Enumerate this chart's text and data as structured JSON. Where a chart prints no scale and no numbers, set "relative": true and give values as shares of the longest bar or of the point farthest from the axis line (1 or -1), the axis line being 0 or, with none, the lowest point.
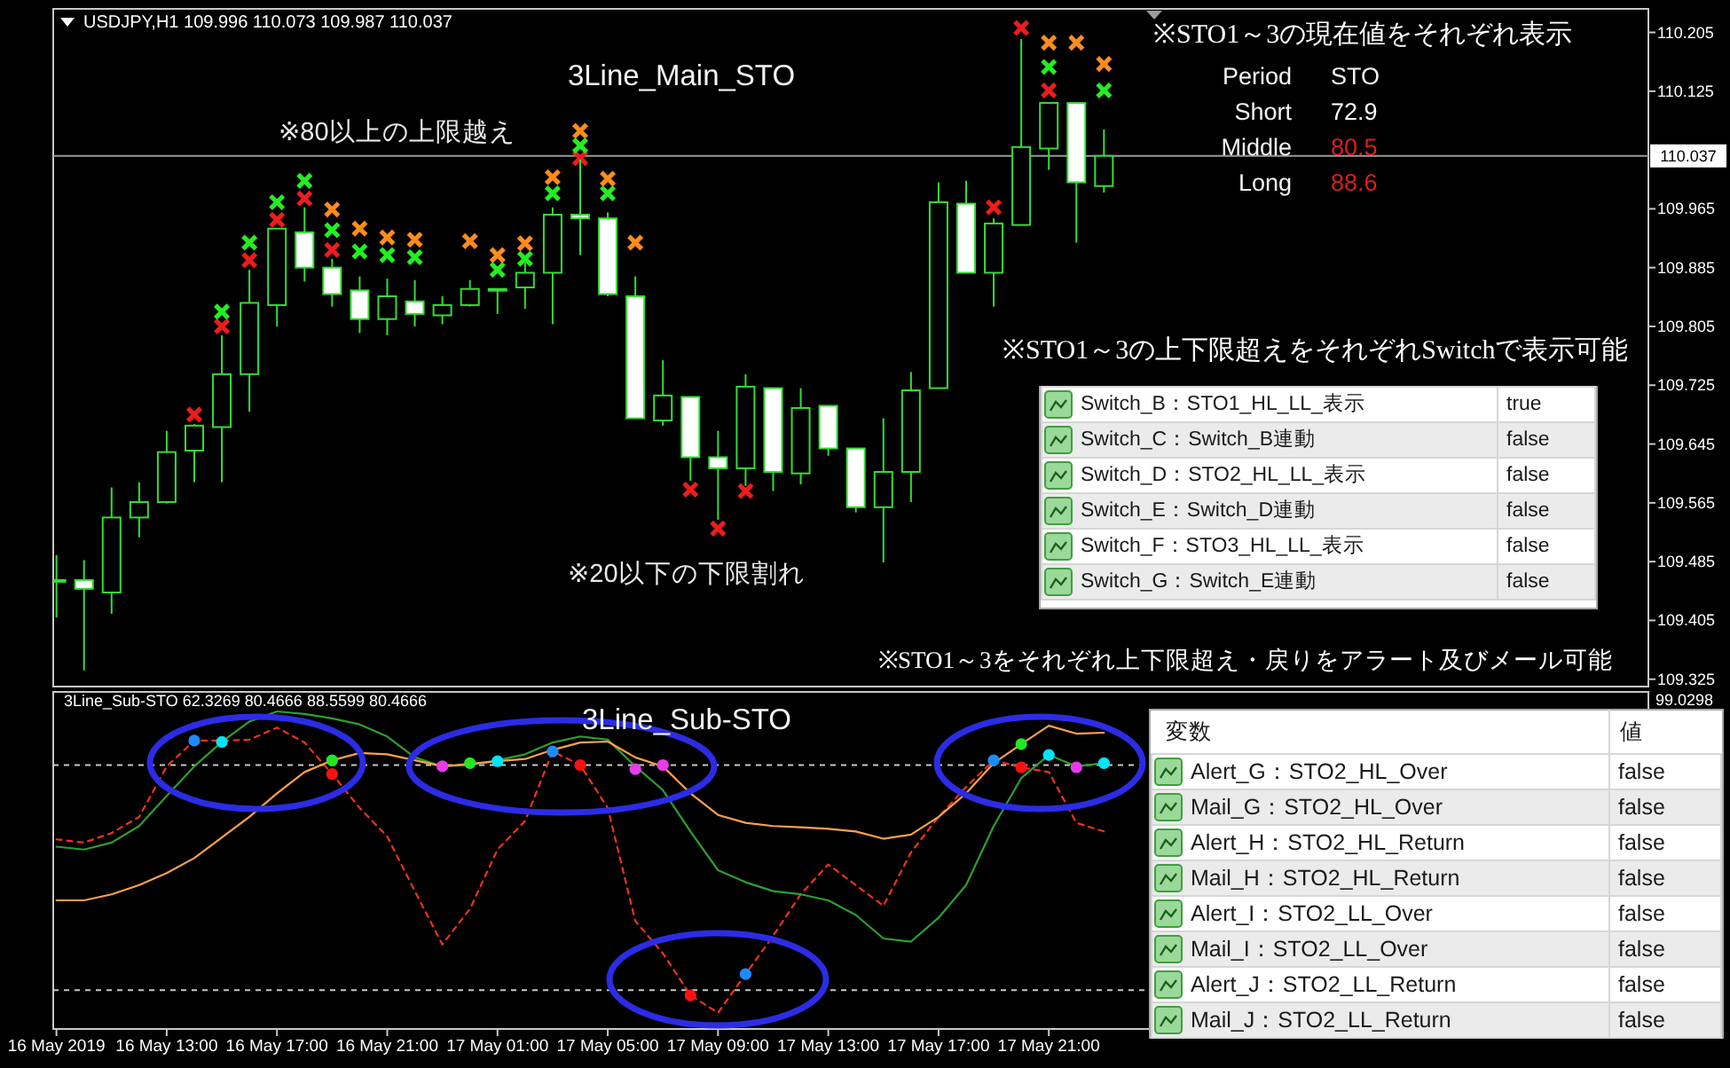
{
  "chart_data": [
    {
      "type": "candlestick",
      "title": "3Line_Main_STO",
      "annotations": [
        "USDJPY,H1 109.996 110.073 109.987 110.037",
        "※80以上の上限越え",
        "※20以下の下限割れ",
        "※STO1～3の上下限超えをそれぞれSwitchで表示可能",
        "※STO1～3をそれぞれ上下限超え・戻りをアラート及びメール可能"
      ],
      "color": "#33dd33",
      "x": [
        "2019-05-16T09:00",
        "2019-05-16T10:00",
        "2019-05-16T11:00",
        "2019-05-16T12:00",
        "2019-05-16T13:00",
        "2019-05-16T14:00",
        "2019-05-16T15:00",
        "2019-05-16T16:00",
        "2019-05-16T17:00",
        "2019-05-16T18:00",
        "2019-05-16T19:00",
        "2019-05-16T20:00",
        "2019-05-16T21:00",
        "2019-05-16T22:00",
        "2019-05-16T23:00",
        "2019-05-17T00:00",
        "2019-05-17T01:00",
        "2019-05-17T02:00",
        "2019-05-17T03:00",
        "2019-05-17T04:00",
        "2019-05-17T05:00",
        "2019-05-17T06:00",
        "2019-05-17T07:00",
        "2019-05-17T08:00",
        "2019-05-17T09:00",
        "2019-05-17T10:00",
        "2019-05-17T11:00",
        "2019-05-17T12:00",
        "2019-05-17T13:00",
        "2019-05-17T14:00",
        "2019-05-17T15:00",
        "2019-05-17T16:00",
        "2019-05-17T17:00",
        "2019-05-17T18:00",
        "2019-05-17T19:00",
        "2019-05-17T20:00",
        "2019-05-17T21:00",
        "2019-05-17T22:00",
        "2019-05-17T23:00"
      ],
      "ohlc": [
        [
          109.46,
          109.494,
          109.409,
          109.46
        ],
        [
          109.46,
          109.487,
          109.337,
          109.448
        ],
        [
          109.443,
          109.586,
          109.414,
          109.545
        ],
        [
          109.545,
          109.593,
          109.518,
          109.566
        ],
        [
          109.566,
          109.663,
          109.564,
          109.634
        ],
        [
          109.636,
          109.672,
          109.593,
          109.67
        ],
        [
          109.668,
          109.793,
          109.593,
          109.74
        ],
        [
          109.74,
          109.882,
          109.689,
          109.837
        ],
        [
          109.834,
          109.938,
          109.805,
          109.938
        ],
        [
          109.933,
          109.967,
          109.866,
          109.885
        ],
        [
          109.885,
          109.897,
          109.832,
          109.849
        ],
        [
          109.854,
          109.873,
          109.796,
          109.815
        ],
        [
          109.815,
          109.87,
          109.793,
          109.846
        ],
        [
          109.839,
          109.868,
          109.805,
          109.822
        ],
        [
          109.82,
          109.846,
          109.808,
          109.834
        ],
        [
          109.834,
          109.868,
          109.832,
          109.856
        ],
        [
          109.856,
          109.856,
          109.822,
          109.856
        ],
        [
          109.858,
          109.892,
          109.829,
          109.878
        ],
        [
          109.878,
          109.967,
          109.808,
          109.957
        ],
        [
          109.957,
          110.032,
          109.902,
          109.952
        ],
        [
          109.952,
          109.96,
          109.846,
          109.849
        ],
        [
          109.846,
          109.873,
          109.68,
          109.68
        ],
        [
          109.677,
          109.759,
          109.67,
          109.711
        ],
        [
          109.709,
          109.709,
          109.595,
          109.627
        ],
        [
          109.627,
          109.663,
          109.542,
          109.612
        ],
        [
          109.612,
          109.74,
          109.588,
          109.723
        ],
        [
          109.721,
          109.721,
          109.581,
          109.607
        ],
        [
          109.605,
          109.721,
          109.59,
          109.694
        ],
        [
          109.697,
          109.697,
          109.629,
          109.639
        ],
        [
          109.639,
          109.639,
          109.552,
          109.559
        ],
        [
          109.559,
          109.68,
          109.484,
          109.607
        ],
        [
          109.607,
          109.743,
          109.566,
          109.718
        ],
        [
          109.721,
          110.001,
          109.721,
          109.974
        ],
        [
          109.972,
          110.003,
          109.878,
          109.878
        ],
        [
          109.878,
          109.952,
          109.832,
          109.945
        ],
        [
          109.943,
          110.196,
          109.943,
          110.049
        ],
        [
          110.047,
          110.109,
          110.018,
          110.109
        ],
        [
          110.109,
          110.109,
          109.919,
          110.001
        ],
        [
          109.996,
          110.073,
          109.987,
          110.037
        ]
      ],
      "series": [
        {
          "type": "scatter",
          "marker": "cross",
          "color": "#ee1c1c",
          "x": [
            "2019-05-16T14:00",
            "2019-05-16T15:00",
            "2019-05-16T16:00",
            "2019-05-16T17:00",
            "2019-05-16T18:00",
            "2019-05-16T19:00",
            "2019-05-17T04:00",
            "2019-05-17T08:00",
            "2019-05-17T09:00",
            "2019-05-17T10:00",
            "2019-05-17T19:00",
            "2019-05-17T20:00",
            "2019-05-17T21:00"
          ],
          "values": [
            109.685,
            109.805,
            109.895,
            109.95,
            109.979,
            109.909,
            110.034,
            109.583,
            109.53,
            109.581,
            109.967,
            110.211,
            110.126
          ]
        },
        {
          "type": "scatter",
          "marker": "cross",
          "color": "#22ee22",
          "x": [
            "2019-05-16T15:00",
            "2019-05-16T16:00",
            "2019-05-16T17:00",
            "2019-05-16T18:00",
            "2019-05-16T19:00",
            "2019-05-16T20:00",
            "2019-05-16T21:00",
            "2019-05-16T22:00",
            "2019-05-17T01:00",
            "2019-05-17T02:00",
            "2019-05-17T03:00",
            "2019-05-17T04:00",
            "2019-05-17T05:00",
            "2019-05-17T21:00",
            "2019-05-17T23:00"
          ],
          "values": [
            109.825,
            109.919,
            109.974,
            110.003,
            109.936,
            109.907,
            109.902,
            109.899,
            109.882,
            109.897,
            109.986,
            110.051,
            109.986,
            110.158,
            110.126
          ]
        },
        {
          "type": "scatter",
          "marker": "cross",
          "color": "#ff8c1a",
          "x": [
            "2019-05-16T19:00",
            "2019-05-16T20:00",
            "2019-05-16T21:00",
            "2019-05-16T22:00",
            "2019-05-17T00:00",
            "2019-05-17T01:00",
            "2019-05-17T02:00",
            "2019-05-17T03:00",
            "2019-05-17T04:00",
            "2019-05-17T05:00",
            "2019-05-17T06:00",
            "2019-05-17T21:00",
            "2019-05-17T22:00",
            "2019-05-17T23:00"
          ],
          "values": [
            109.964,
            109.938,
            109.926,
            109.923,
            109.921,
            109.902,
            109.918,
            110.008,
            110.071,
            110.006,
            109.919,
            110.191,
            110.191,
            110.162
          ]
        }
      ],
      "xlim": [
        "2019-05-16T08:53",
        "2019-05-18T18:45"
      ],
      "ylim": [
        109.315,
        110.237
      ],
      "yticks": [
        110.205,
        110.125,
        109.965,
        109.885,
        109.805,
        109.725,
        109.645,
        109.565,
        109.485,
        109.405,
        109.325
      ],
      "tick_labels": "y",
      "ref_lines": [
        {
          "axis": "y",
          "value": 110.037,
          "label": "110.037",
          "color": "#9a9a9a"
        }
      ]
    },
    {
      "type": "other",
      "title": "※STO1～3の現在値をそれぞれ表示",
      "xlabel": "Period",
      "ylabel": "STO",
      "categories": [
        "Short",
        "Middle",
        "Long"
      ],
      "values": [
        72.9,
        80.5,
        88.6
      ],
      "colors": [
        "#ffffff",
        "#e01b1b",
        "#e01b1b"
      ],
      "data_labels": true
    },
    {
      "type": "other",
      "categories": [
        "Switch_B：STO1_HL_LL_表示",
        "Switch_C：Switch_B連動",
        "Switch_D：STO2_HL_LL_表示",
        "Switch_E：Switch_D連動",
        "Switch_F：STO3_HL_LL_表示",
        "Switch_G：Switch_E連動"
      ],
      "value_labels": [
        "true",
        "false",
        "false",
        "false",
        "false",
        "false"
      ]
    },
    {
      "type": "line",
      "title": "3Line_Sub-STO",
      "annotations": [
        "3Line_Sub-STO 62.3269 80.4666 88.5599 80.4666",
        "99.0298"
      ],
      "relative": true,
      "x": [
        "2019-05-16T09:00",
        "2019-05-16T10:00",
        "2019-05-16T11:00",
        "2019-05-16T12:00",
        "2019-05-16T13:00",
        "2019-05-16T14:00",
        "2019-05-16T15:00",
        "2019-05-16T16:00",
        "2019-05-16T17:00",
        "2019-05-16T18:00",
        "2019-05-16T19:00",
        "2019-05-16T20:00",
        "2019-05-16T21:00",
        "2019-05-16T22:00",
        "2019-05-16T23:00",
        "2019-05-17T00:00",
        "2019-05-17T01:00",
        "2019-05-17T02:00",
        "2019-05-17T03:00",
        "2019-05-17T04:00",
        "2019-05-17T05:00",
        "2019-05-17T06:00",
        "2019-05-17T07:00",
        "2019-05-17T08:00",
        "2019-05-17T09:00",
        "2019-05-17T10:00",
        "2019-05-17T11:00",
        "2019-05-17T12:00",
        "2019-05-17T13:00",
        "2019-05-17T14:00",
        "2019-05-17T15:00",
        "2019-05-17T16:00",
        "2019-05-17T17:00",
        "2019-05-17T18:00",
        "2019-05-17T19:00",
        "2019-05-17T20:00",
        "2019-05-17T21:00",
        "2019-05-17T22:00",
        "2019-05-17T23:00"
      ],
      "series": [
        {
          "color": "#f0321e",
          "line_style": "dashed",
          "values": [
            0.597,
            0.587,
            0.617,
            0.668,
            0.827,
            0.908,
            0.908,
            0.911,
            0.949,
            0.902,
            0.803,
            0.696,
            0.606,
            0.434,
            0.266,
            0.378,
            0.565,
            0.655,
            0.874,
            0.831,
            0.696,
            0.34,
            0.238,
            0.106,
            0.051,
            0.173,
            0.293,
            0.424,
            0.518,
            0.453,
            0.388,
            0.556,
            0.668,
            0.762,
            0.846,
            0.824,
            0.809,
            0.649,
            0.622
          ]
        },
        {
          "color": "#2e9e2e",
          "values": [
            0.574,
            0.565,
            0.587,
            0.639,
            0.734,
            0.827,
            0.904,
            0.968,
            1,
            0.992,
            0.978,
            0.959,
            0.921,
            0.855,
            0.827,
            0.831,
            0.846,
            0.865,
            0.902,
            0.921,
            0.911,
            0.827,
            0.752,
            0.622,
            0.5,
            0.462,
            0.434,
            0.424,
            0.405,
            0.359,
            0.285,
            0.275,
            0.35,
            0.453,
            0.639,
            0.79,
            0.863,
            0.827,
            0.837
          ]
        },
        {
          "color": "#ffa04a",
          "values": [
            0.405,
            0.405,
            0.424,
            0.453,
            0.491,
            0.538,
            0.603,
            0.668,
            0.742,
            0.809,
            0.846,
            0.869,
            0.865,
            0.846,
            0.827,
            0.835,
            0.843,
            0.85,
            0.879,
            0.902,
            0.905,
            0.855,
            0.827,
            0.742,
            0.674,
            0.649,
            0.639,
            0.635,
            0.63,
            0.622,
            0.599,
            0.612,
            0.668,
            0.742,
            0.837,
            0.897,
            0.955,
            0.93,
            0.933
          ]
        },
        {
          "type": "scatter",
          "marker": "circle",
          "color": "#1e8cff",
          "x": [
            "2019-05-16T14:00",
            "2019-05-17T03:00",
            "2019-05-17T10:00",
            "2019-05-17T19:00"
          ],
          "values": [
            0.908,
            0.874,
            0.173,
            0.846
          ]
        },
        {
          "type": "scatter",
          "marker": "circle",
          "color": "#00e5ff",
          "x": [
            "2019-05-16T15:00",
            "2019-05-17T01:00",
            "2019-05-17T21:00",
            "2019-05-17T23:00"
          ],
          "values": [
            0.904,
            0.843,
            0.863,
            0.837
          ]
        },
        {
          "type": "scatter",
          "marker": "circle",
          "color": "#22e822",
          "x": [
            "2019-05-16T19:00",
            "2019-05-17T00:00",
            "2019-05-17T20:00"
          ],
          "values": [
            0.846,
            0.837,
            0.897
          ]
        },
        {
          "type": "scatter",
          "marker": "circle",
          "color": "#ff1010",
          "x": [
            "2019-05-16T19:00",
            "2019-05-17T04:00",
            "2019-05-17T08:00",
            "2019-05-17T20:00"
          ],
          "values": [
            0.803,
            0.831,
            0.106,
            0.824
          ]
        },
        {
          "type": "scatter",
          "marker": "circle",
          "color": "#e83ce8",
          "x": [
            "2019-05-16T23:00",
            "2019-05-17T06:00",
            "2019-05-17T07:00",
            "2019-05-17T22:00"
          ],
          "values": [
            0.827,
            0.818,
            0.831,
            0.824
          ]
        }
      ],
      "xlim": [
        "2019-05-16T08:53",
        "2019-05-18T18:45"
      ],
      "xticks": [
        {
          "value": "2019-05-16T09:00",
          "label": "16 May 2019"
        },
        {
          "value": "2019-05-16T13:00",
          "label": "16 May 13:00"
        },
        {
          "value": "2019-05-16T17:00",
          "label": "16 May 17:00"
        },
        {
          "value": "2019-05-16T21:00",
          "label": "16 May 21:00"
        },
        {
          "value": "2019-05-17T01:00",
          "label": "17 May 01:00"
        },
        {
          "value": "2019-05-17T05:00",
          "label": "17 May 05:00"
        },
        {
          "value": "2019-05-17T09:00",
          "label": "17 May 09:00"
        },
        {
          "value": "2019-05-17T13:00",
          "label": "17 May 13:00"
        },
        {
          "value": "2019-05-17T17:00",
          "label": "17 May 17:00"
        },
        {
          "value": "2019-05-17T21:00",
          "label": "17 May 21:00"
        }
      ],
      "ref_lines": [
        {
          "axis": "y",
          "value": 0.831,
          "color": "#c8c8c8",
          "line_style": "dashed"
        },
        {
          "axis": "y",
          "value": 0.122,
          "color": "#c8c8c8",
          "line_style": "dashed"
        }
      ]
    },
    {
      "type": "other",
      "xlabel": "変数",
      "ylabel": "値",
      "categories": [
        "Alert_G：STO2_HL_Over",
        "Mail_G：STO2_HL_Over",
        "Alert_H：STO2_HL_Return",
        "Mail_H：STO2_HL_Return",
        "Alert_I：STO2_LL_Over",
        "Mail_I：STO2_LL_Over",
        "Alert_J：STO2_LL_Return",
        "Mail_J：STO2_LL_Return"
      ],
      "value_labels": [
        "false",
        "false",
        "false",
        "false",
        "false",
        "false",
        "false",
        "false"
      ]
    }
  ]
}
